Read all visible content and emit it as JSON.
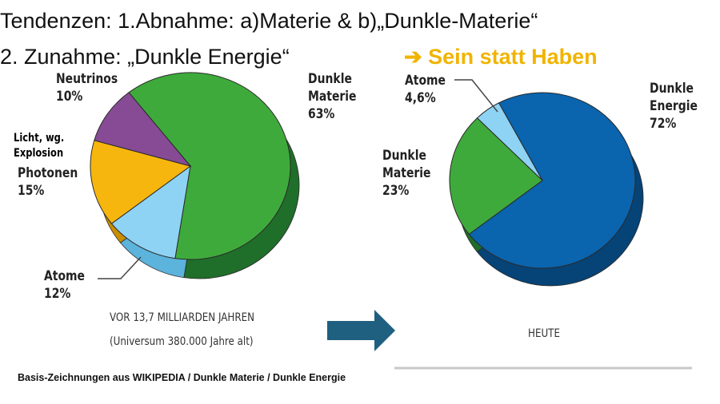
{
  "slide": {
    "title_line1": "Tendenzen: 1.Abnahme: a)Materie & b)„Dunkle-Materie“",
    "title_line2": "2. Zunahme: „Dunkle Energie“",
    "accent_text": "➔ Sein statt Haben",
    "accent_color": "#f0b400",
    "footer": "Basis-Zeichnungen aus WIKIPEDIA / Dunkle Materie / Dunkle Energie",
    "annotation": "Licht, wg. Explosion",
    "arrow_color": "#1f5f80"
  },
  "chart_data": [
    {
      "type": "pie",
      "caption": "VOR 13,7 MILLIARDEN JAHREN",
      "subcaption": "(Universum 380.000 Jahre alt)",
      "slices": [
        {
          "name": "Dunkle Materie",
          "value": 63,
          "label": "63%",
          "color": "#3faa3c",
          "side": "#1f6e2a"
        },
        {
          "name": "Atome",
          "value": 12,
          "label": "12%",
          "color": "#8fd3f4",
          "side": "#5cb3db"
        },
        {
          "name": "Photonen",
          "value": 15,
          "label": "15%",
          "color": "#f6b60e",
          "side": "#c98d00"
        },
        {
          "name": "Neutrinos",
          "value": 10,
          "label": "10%",
          "color": "#864b94",
          "side": "#5e2f6a"
        }
      ]
    },
    {
      "type": "pie",
      "caption": "HEUTE",
      "slices": [
        {
          "name": "Dunkle Energie",
          "value": 72,
          "label": "72%",
          "color": "#0a64ae",
          "side": "#064376"
        },
        {
          "name": "Dunkle Materie",
          "value": 23,
          "label": "23%",
          "color": "#3faa3c",
          "side": "#1f6e2a"
        },
        {
          "name": "Atome",
          "value": 4.6,
          "label": "4,6%",
          "color": "#8fd3f4",
          "side": "#5cb3db"
        }
      ]
    }
  ]
}
